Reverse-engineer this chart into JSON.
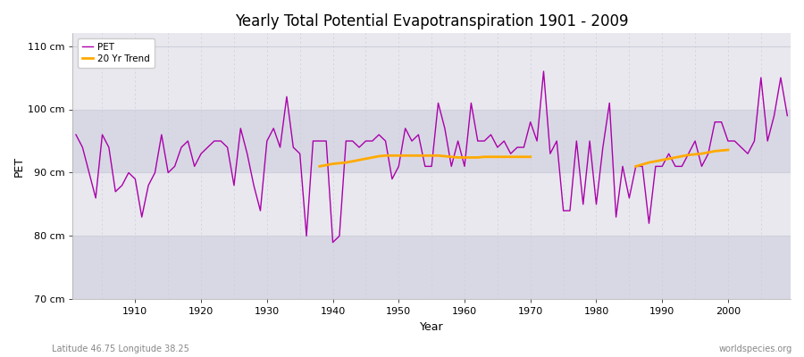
{
  "title": "Yearly Total Potential Evapotranspiration 1901 - 2009",
  "xlabel": "Year",
  "ylabel": "PET",
  "subtitle_left": "Latitude 46.75 Longitude 38.25",
  "subtitle_right": "worldspecies.org",
  "ylim": [
    70,
    112
  ],
  "yticks": [
    70,
    80,
    90,
    100,
    110
  ],
  "ytick_labels": [
    "70 cm",
    "80 cm",
    "90 cm",
    "100 cm",
    "110 cm"
  ],
  "pet_color": "#aa00aa",
  "trend_color": "#ffaa00",
  "bg_color": "#ffffff",
  "plot_bg_color": "#e8e8ee",
  "stripe_color": "#d8d8e4",
  "grid_color_v": "#ccccdd",
  "grid_color_h": "#d0d0dc",
  "years": [
    1901,
    1902,
    1903,
    1904,
    1905,
    1906,
    1907,
    1908,
    1909,
    1910,
    1911,
    1912,
    1913,
    1914,
    1915,
    1916,
    1917,
    1918,
    1919,
    1920,
    1921,
    1922,
    1923,
    1924,
    1925,
    1926,
    1927,
    1928,
    1929,
    1930,
    1931,
    1932,
    1933,
    1934,
    1935,
    1936,
    1937,
    1938,
    1939,
    1940,
    1941,
    1942,
    1943,
    1944,
    1945,
    1946,
    1947,
    1948,
    1949,
    1950,
    1951,
    1952,
    1953,
    1954,
    1955,
    1956,
    1957,
    1958,
    1959,
    1960,
    1961,
    1962,
    1963,
    1964,
    1965,
    1966,
    1967,
    1968,
    1969,
    1970,
    1971,
    1972,
    1973,
    1974,
    1975,
    1976,
    1977,
    1978,
    1979,
    1980,
    1981,
    1982,
    1983,
    1984,
    1985,
    1986,
    1987,
    1988,
    1989,
    1990,
    1991,
    1992,
    1993,
    1994,
    1995,
    1996,
    1997,
    1998,
    1999,
    2000,
    2001,
    2002,
    2003,
    2004,
    2005,
    2006,
    2007,
    2008,
    2009
  ],
  "pet_values": [
    96,
    94,
    90,
    86,
    96,
    94,
    87,
    88,
    90,
    89,
    83,
    88,
    90,
    96,
    90,
    91,
    94,
    95,
    91,
    93,
    94,
    95,
    95,
    94,
    88,
    97,
    93,
    88,
    84,
    95,
    97,
    94,
    102,
    94,
    93,
    80,
    95,
    95,
    95,
    79,
    80,
    95,
    95,
    94,
    95,
    95,
    96,
    95,
    89,
    91,
    97,
    95,
    96,
    91,
    91,
    101,
    97,
    91,
    95,
    91,
    101,
    95,
    95,
    96,
    94,
    95,
    93,
    94,
    94,
    98,
    95,
    106,
    93,
    95,
    84,
    84,
    95,
    85,
    95,
    85,
    94,
    101,
    83,
    91,
    86,
    91,
    91,
    82,
    91,
    91,
    93,
    91,
    91,
    93,
    95,
    91,
    93,
    98,
    98,
    95,
    95,
    94,
    93,
    95,
    105,
    95,
    99,
    105,
    99
  ],
  "trend_seg1_years": [
    1938,
    1939,
    1940,
    1941,
    1942,
    1943,
    1944,
    1945,
    1946,
    1947,
    1948,
    1949,
    1950,
    1951,
    1952,
    1953,
    1954,
    1955,
    1956,
    1957,
    1958,
    1959,
    1960,
    1961,
    1962,
    1963,
    1964,
    1965,
    1966,
    1967,
    1968,
    1969,
    1970
  ],
  "trend_seg1_values": [
    91.0,
    91.2,
    91.4,
    91.5,
    91.6,
    91.8,
    92.0,
    92.2,
    92.4,
    92.6,
    92.7,
    92.7,
    92.7,
    92.7,
    92.7,
    92.7,
    92.7,
    92.7,
    92.7,
    92.6,
    92.5,
    92.4,
    92.4,
    92.4,
    92.4,
    92.5,
    92.5,
    92.5,
    92.5,
    92.5,
    92.5,
    92.5,
    92.5
  ],
  "trend_seg2_years": [
    1986,
    1987,
    1988,
    1989,
    1990,
    1991,
    1992,
    1993,
    1994,
    1995,
    1996,
    1997,
    1998,
    1999,
    2000
  ],
  "trend_seg2_values": [
    91.0,
    91.3,
    91.6,
    91.8,
    92.0,
    92.2,
    92.4,
    92.6,
    92.8,
    92.9,
    93.0,
    93.2,
    93.4,
    93.5,
    93.6
  ],
  "xtick_positions": [
    1910,
    1920,
    1930,
    1940,
    1950,
    1960,
    1970,
    1980,
    1990,
    2000
  ],
  "figsize": [
    9.0,
    4.0
  ],
  "dpi": 100
}
